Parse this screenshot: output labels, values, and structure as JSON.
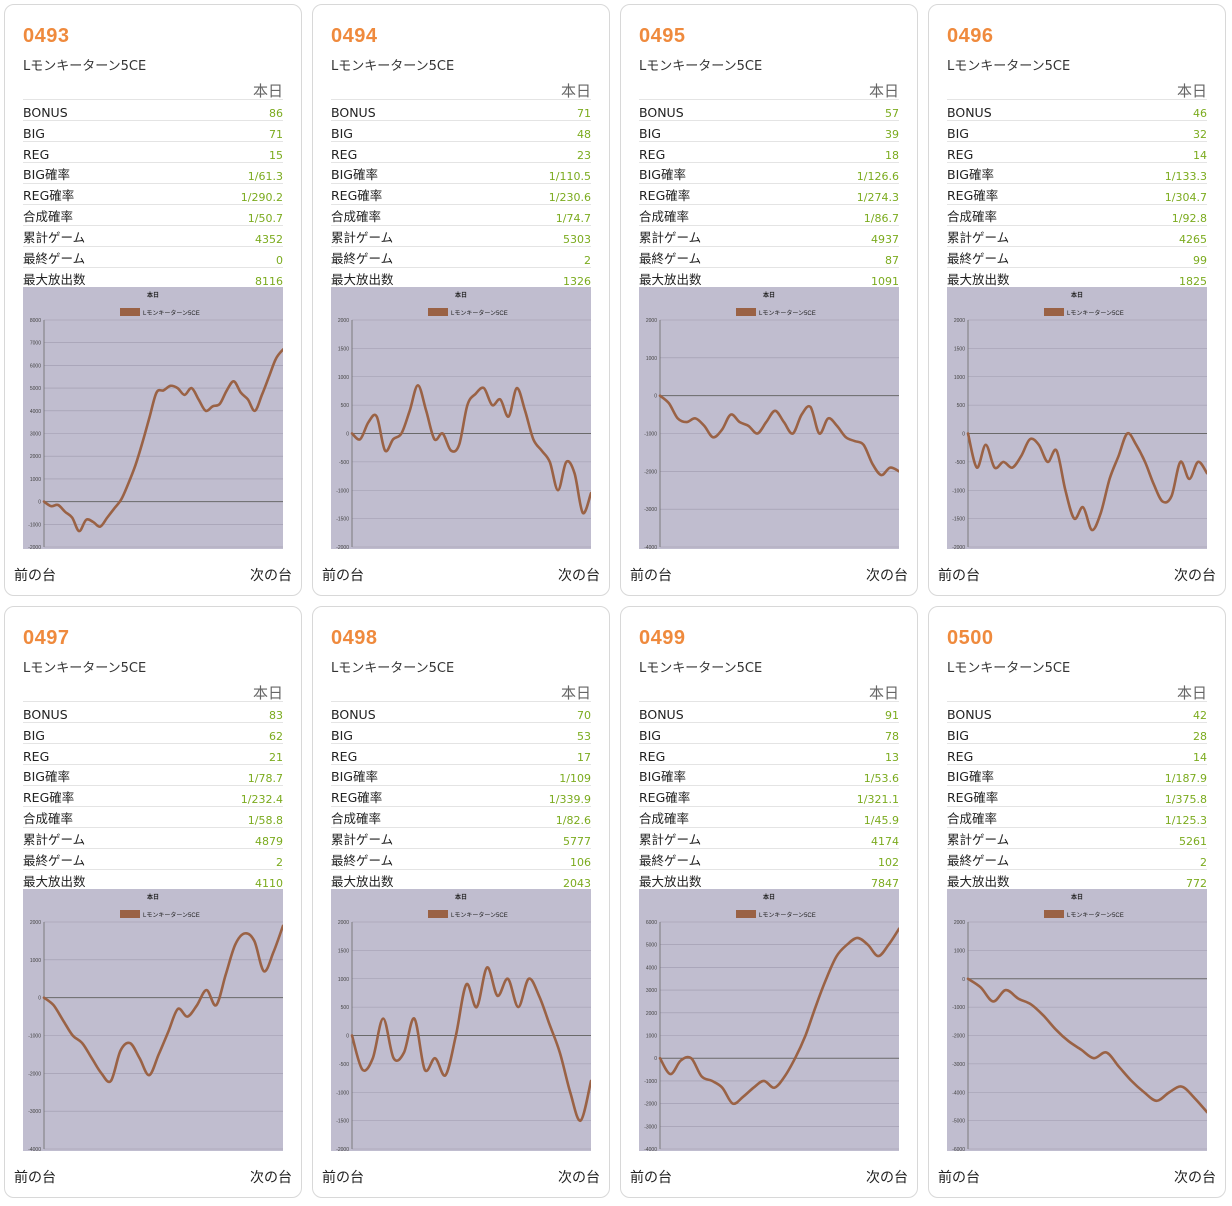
{
  "common": {
    "today_label": "本日",
    "prev_label": "前の台",
    "next_label": "次の台",
    "stat_labels": [
      "BONUS",
      "BIG",
      "REG",
      "BIG確率",
      "REG確率",
      "合成確率",
      "累計ゲーム",
      "最終ゲーム",
      "最大放出数"
    ],
    "chart_title": "本日",
    "legend_label": "Lモンキーターン5CE",
    "colors": {
      "accent": "#ef8a3d",
      "value": "#7bab1e",
      "chart_bg": "#c0bdcf",
      "line": "#9a6245"
    }
  },
  "machines": [
    {
      "id": "0493",
      "model": "Lモンキーターン5CE",
      "stats": [
        "86",
        "71",
        "15",
        "1/61.3",
        "1/290.2",
        "1/50.7",
        "4352",
        "0",
        "8116"
      ],
      "chart_data": {
        "type": "line",
        "title": "本日",
        "series": [
          {
            "name": "Lモンキーターン5CE",
            "values": [
              0,
              -200,
              -150,
              -450,
              -700,
              -1300,
              -800,
              -900,
              -1100,
              -700,
              -300,
              100,
              800,
              1600,
              2600,
              3700,
              4800,
              4900,
              5100,
              5000,
              4700,
              5000,
              4500,
              4000,
              4200,
              4300,
              4900,
              5300,
              4800,
              4500,
              4000,
              4700,
              5500,
              6300,
              6700
            ]
          }
        ],
        "ylim": [
          -2000,
          8000
        ],
        "yticks": [
          -2000,
          -1000,
          0,
          1000,
          2000,
          3000,
          4000,
          5000,
          6000,
          7000,
          8000
        ]
      }
    },
    {
      "id": "0494",
      "model": "Lモンキーターン5CE",
      "stats": [
        "71",
        "48",
        "23",
        "1/110.5",
        "1/230.6",
        "1/74.7",
        "5303",
        "2",
        "1326"
      ],
      "chart_data": {
        "type": "line",
        "title": "本日",
        "series": [
          {
            "name": "Lモンキーターン5CE",
            "values": [
              0,
              -100,
              200,
              300,
              -300,
              -100,
              0,
              400,
              850,
              400,
              -100,
              0,
              -300,
              -200,
              500,
              700,
              800,
              500,
              600,
              300,
              800,
              400,
              -100,
              -300,
              -500,
              -1000,
              -500,
              -700,
              -1400,
              -1050
            ]
          }
        ],
        "ylim": [
          -2000,
          2000
        ],
        "yticks": [
          -2000,
          -1500,
          -1000,
          -500,
          0,
          500,
          1000,
          1500,
          2000
        ]
      }
    },
    {
      "id": "0495",
      "model": "Lモンキーターン5CE",
      "stats": [
        "57",
        "39",
        "18",
        "1/126.6",
        "1/274.3",
        "1/86.7",
        "4937",
        "87",
        "1091"
      ],
      "chart_data": {
        "type": "line",
        "title": "本日",
        "series": [
          {
            "name": "Lモンキーターン5CE",
            "values": [
              0,
              -200,
              -600,
              -700,
              -600,
              -800,
              -1100,
              -900,
              -500,
              -700,
              -800,
              -1000,
              -700,
              -400,
              -700,
              -1000,
              -500,
              -300,
              -1000,
              -600,
              -800,
              -1100,
              -1200,
              -1300,
              -1800,
              -2100,
              -1900,
              -2000
            ]
          }
        ],
        "ylim": [
          -4000,
          2000
        ],
        "yticks": [
          -4000,
          -3000,
          -2000,
          -1000,
          0,
          1000,
          2000
        ]
      }
    },
    {
      "id": "0496",
      "model": "Lモンキーターン5CE",
      "stats": [
        "46",
        "32",
        "14",
        "1/133.3",
        "1/304.7",
        "1/92.8",
        "4265",
        "99",
        "1825"
      ],
      "chart_data": {
        "type": "line",
        "title": "本日",
        "series": [
          {
            "name": "Lモンキーターン5CE",
            "values": [
              0,
              -600,
              -200,
              -600,
              -500,
              -600,
              -400,
              -100,
              -200,
              -500,
              -300,
              -1000,
              -1500,
              -1300,
              -1700,
              -1400,
              -800,
              -400,
              0,
              -200,
              -500,
              -900,
              -1200,
              -1100,
              -500,
              -800,
              -500,
              -700
            ]
          }
        ],
        "ylim": [
          -2000,
          2000
        ],
        "yticks": [
          -2000,
          -1500,
          -1000,
          -500,
          0,
          500,
          1000,
          1500,
          2000
        ]
      }
    },
    {
      "id": "0497",
      "model": "Lモンキーターン5CE",
      "stats": [
        "83",
        "62",
        "21",
        "1/78.7",
        "1/232.4",
        "1/58.8",
        "4879",
        "2",
        "4110"
      ],
      "chart_data": {
        "type": "line",
        "title": "本日",
        "series": [
          {
            "name": "Lモンキーターン5CE",
            "values": [
              0,
              -200,
              -600,
              -1000,
              -1200,
              -1600,
              -2000,
              -2200,
              -1400,
              -1200,
              -1600,
              -2050,
              -1500,
              -900,
              -300,
              -500,
              -200,
              200,
              -200,
              600,
              1400,
              1700,
              1500,
              700,
              1200,
              1900
            ]
          }
        ],
        "ylim": [
          -4000,
          2000
        ],
        "yticks": [
          -4000,
          -3000,
          -2000,
          -1000,
          0,
          1000,
          2000
        ]
      }
    },
    {
      "id": "0498",
      "model": "Lモンキーターン5CE",
      "stats": [
        "70",
        "53",
        "17",
        "1/109",
        "1/339.9",
        "1/82.6",
        "5777",
        "106",
        "2043"
      ],
      "chart_data": {
        "type": "line",
        "title": "本日",
        "series": [
          {
            "name": "Lモンキーターン5CE",
            "values": [
              0,
              -600,
              -400,
              300,
              -400,
              -300,
              300,
              -600,
              -400,
              -700,
              0,
              900,
              500,
              1200,
              700,
              1000,
              500,
              1000,
              700,
              200,
              -300,
              -1000,
              -1500,
              -800
            ]
          }
        ],
        "ylim": [
          -2000,
          2000
        ],
        "yticks": [
          -2000,
          -1500,
          -1000,
          -500,
          0,
          500,
          1000,
          1500,
          2000
        ]
      }
    },
    {
      "id": "0499",
      "model": "Lモンキーターン5CE",
      "stats": [
        "91",
        "78",
        "13",
        "1/53.6",
        "1/321.1",
        "1/45.9",
        "4174",
        "102",
        "7847"
      ],
      "chart_data": {
        "type": "line",
        "title": "本日",
        "series": [
          {
            "name": "Lモンキーターン5CE",
            "values": [
              0,
              -700,
              -100,
              0,
              -800,
              -1000,
              -1300,
              -2000,
              -1700,
              -1300,
              -1000,
              -1300,
              -800,
              0,
              1000,
              2300,
              3500,
              4500,
              5000,
              5300,
              5000,
              4500,
              5000,
              5700
            ]
          }
        ],
        "ylim": [
          -4000,
          6000
        ],
        "yticks": [
          -4000,
          -3000,
          -2000,
          -1000,
          0,
          1000,
          2000,
          3000,
          4000,
          5000,
          6000
        ]
      }
    },
    {
      "id": "0500",
      "model": "Lモンキーターン5CE",
      "stats": [
        "42",
        "28",
        "14",
        "1/187.9",
        "1/375.8",
        "1/125.3",
        "5261",
        "2",
        "772"
      ],
      "chart_data": {
        "type": "line",
        "title": "本日",
        "series": [
          {
            "name": "Lモンキーターン5CE",
            "values": [
              0,
              -300,
              -800,
              -400,
              -700,
              -900,
              -1300,
              -1800,
              -2200,
              -2500,
              -2800,
              -2600,
              -3100,
              -3600,
              -4000,
              -4300,
              -4000,
              -3800,
              -4200,
              -4700
            ]
          }
        ],
        "ylim": [
          -6000,
          2000
        ],
        "yticks": [
          -6000,
          -5000,
          -4000,
          -3000,
          -2000,
          -1000,
          0,
          1000,
          2000
        ]
      }
    }
  ]
}
